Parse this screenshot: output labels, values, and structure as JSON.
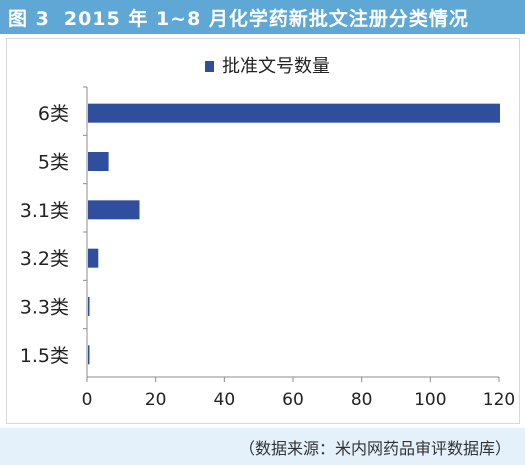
{
  "header": {
    "figure_label": "图 3",
    "title": "2015 年 1~8 月化学药新批文注册分类情况"
  },
  "footer": {
    "source": "（数据来源：米内网药品审评数据库）"
  },
  "colors": {
    "title_bar": "#5fa8d6",
    "bar": "#2f4f9e",
    "source_bar": "#e4f1fa"
  },
  "chart_data": {
    "type": "bar",
    "orientation": "horizontal",
    "categories": [
      "6类",
      "5类",
      "3.1类",
      "3.2类",
      "3.3类",
      "1.5类"
    ],
    "series": [
      {
        "name": "批准文号数量",
        "values": [
          120,
          6,
          15,
          3,
          0.4,
          0.4
        ]
      }
    ],
    "xlim": [
      0,
      120
    ],
    "xticks": [
      0,
      20,
      40,
      60,
      80,
      100,
      120
    ],
    "grid": false,
    "legend": "top"
  }
}
